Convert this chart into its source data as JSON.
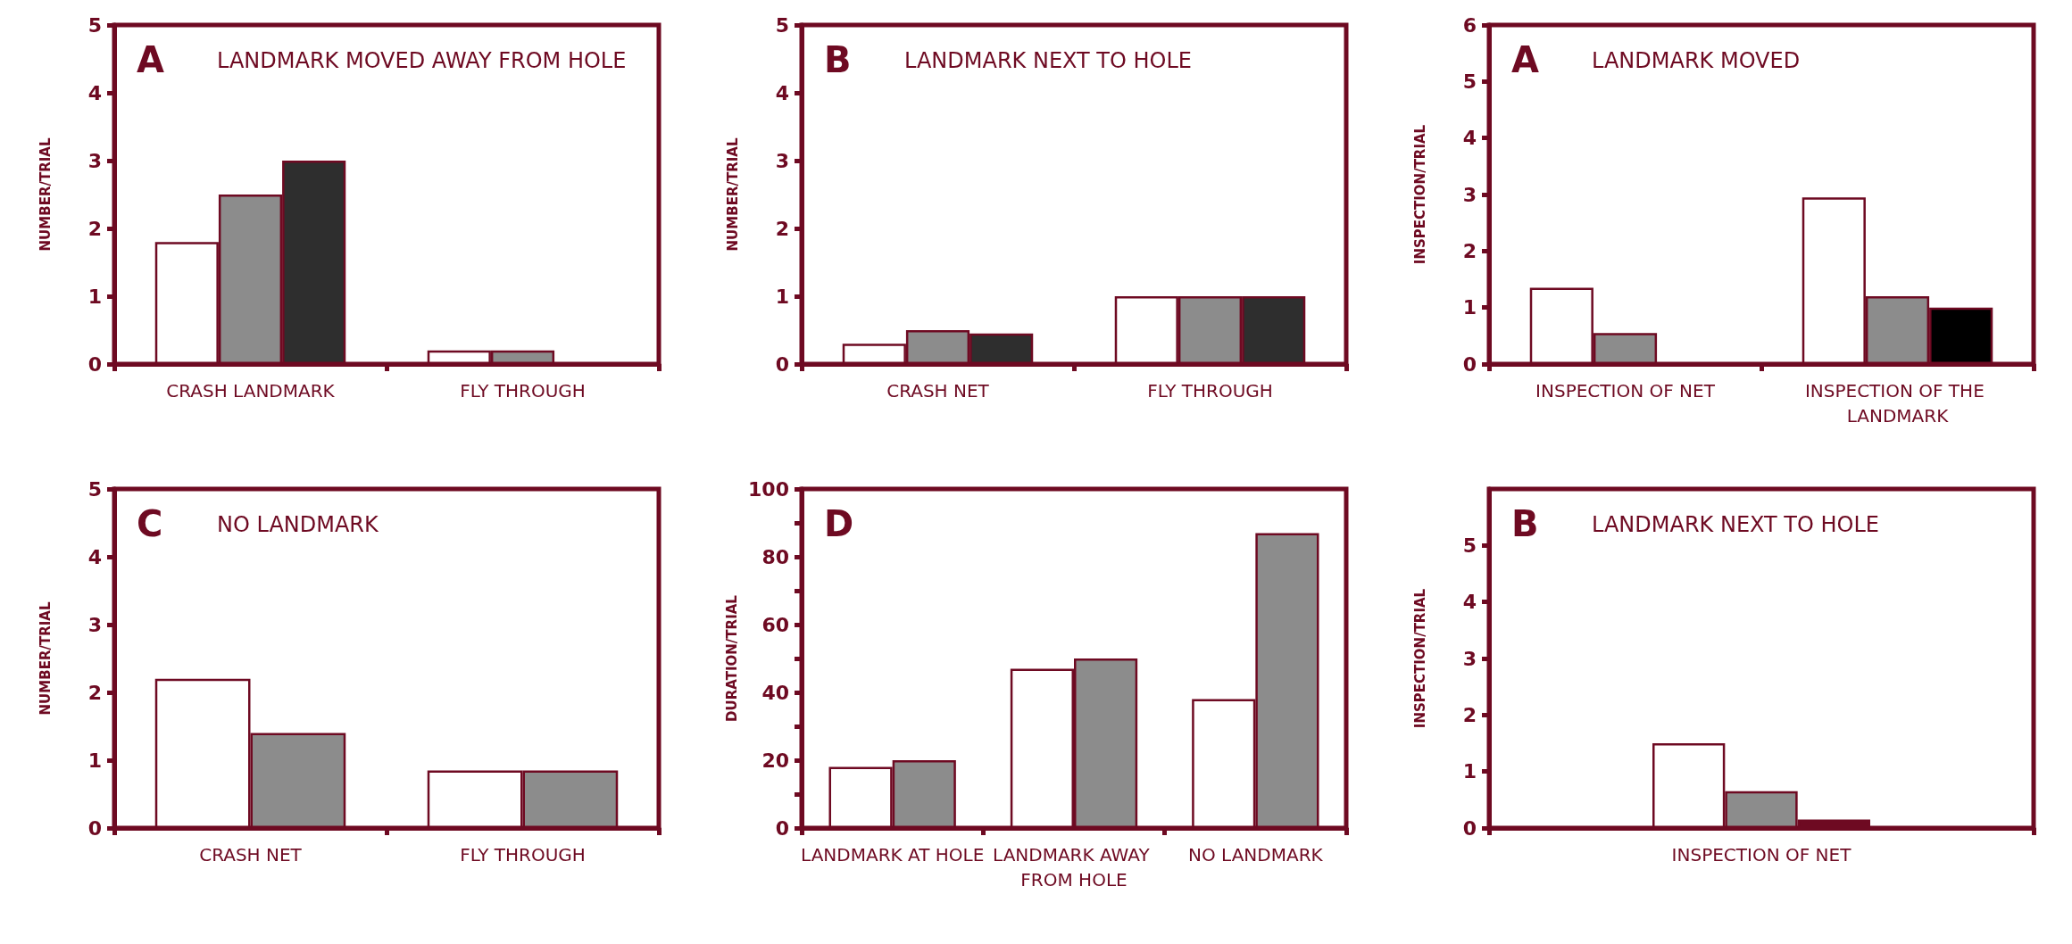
{
  "chart_data": [
    {
      "type": "bar",
      "title": "A",
      "subtitle": "LANDMARK MOVED AWAY FROM HOLE",
      "ylabel": "NUMBER/TRIAL",
      "categories": [
        "CRASH LANDMARK",
        "FLY THROUGH"
      ],
      "ylim": [
        0,
        5
      ],
      "yticks": [
        0,
        1,
        2,
        3,
        4,
        5
      ],
      "series": [
        {
          "color": "#ffffff",
          "values": [
            1.8,
            0.2
          ]
        },
        {
          "color": "#8c8c8c",
          "values": [
            2.5,
            0.2
          ]
        },
        {
          "color": "#2e2e2e",
          "values": [
            3.0,
            null
          ]
        }
      ]
    },
    {
      "type": "bar",
      "title": "B",
      "subtitle": "LANDMARK NEXT TO HOLE",
      "ylabel": "NUMBER/TRIAL",
      "categories": [
        "CRASH NET",
        "FLY THROUGH"
      ],
      "ylim": [
        0,
        5
      ],
      "yticks": [
        0,
        1,
        2,
        3,
        4,
        5
      ],
      "series": [
        {
          "color": "#ffffff",
          "values": [
            0.3,
            1.0
          ]
        },
        {
          "color": "#8c8c8c",
          "values": [
            0.5,
            1.0
          ]
        },
        {
          "color": "#2e2e2e",
          "values": [
            0.45,
            1.0
          ]
        }
      ]
    },
    {
      "type": "bar",
      "title": "A",
      "subtitle": "LANDMARK MOVED",
      "ylabel": "INSPECTION/TRIAL",
      "categories": [
        "INSPECTION OF NET",
        "INSPECTION OF THE LANDMARK"
      ],
      "ylim": [
        0,
        6
      ],
      "yticks": [
        0,
        1,
        2,
        3,
        4,
        5,
        6
      ],
      "series": [
        {
          "color": "#ffffff",
          "values": [
            1.35,
            2.95
          ]
        },
        {
          "color": "#8c8c8c",
          "values": [
            0.55,
            1.2
          ]
        },
        {
          "color": "#000000",
          "values": [
            null,
            1.0
          ]
        }
      ]
    },
    {
      "type": "bar",
      "title": "C",
      "subtitle": "NO LANDMARK",
      "ylabel": "NUMBER/TRIAL",
      "categories": [
        "CRASH NET",
        "FLY THROUGH"
      ],
      "ylim": [
        0,
        5
      ],
      "yticks": [
        0,
        1,
        2,
        3,
        4,
        5
      ],
      "series": [
        {
          "color": "#ffffff",
          "values": [
            2.2,
            0.85
          ]
        },
        {
          "color": "#8c8c8c",
          "values": [
            1.4,
            0.85
          ]
        }
      ]
    },
    {
      "type": "bar",
      "title": "D",
      "ylabel": "DURATION/TRIAL",
      "categories": [
        "LANDMARK AT HOLE",
        "LANDMARK AWAY FROM HOLE",
        "NO LANDMARK"
      ],
      "ylim": [
        0,
        100
      ],
      "yticks": [
        0,
        {
          "value": 10,
          "label": null
        },
        20,
        {
          "value": 30,
          "label": null
        },
        40,
        {
          "value": 50,
          "label": null
        },
        60,
        {
          "value": 70,
          "label": null
        },
        80,
        {
          "value": 90,
          "label": null
        },
        100
      ],
      "series": [
        {
          "color": "#ffffff",
          "values": [
            18,
            47,
            38
          ]
        },
        {
          "color": "#8c8c8c",
          "values": [
            20,
            50,
            87
          ]
        }
      ]
    },
    {
      "type": "bar",
      "title": "B",
      "subtitle": "LANDMARK NEXT TO HOLE",
      "ylabel": "INSPECTION/TRIAL",
      "categories": [
        "INSPECTION OF NET"
      ],
      "ylim": [
        0,
        6
      ],
      "yticks": [
        0,
        1,
        2,
        3,
        4,
        5
      ],
      "series": [
        {
          "color": "#ffffff",
          "values": [
            1.5
          ]
        },
        {
          "color": "#8c8c8c",
          "values": [
            0.65
          ]
        },
        {
          "color": "#6e0a22",
          "values": [
            0.15
          ]
        }
      ]
    }
  ]
}
